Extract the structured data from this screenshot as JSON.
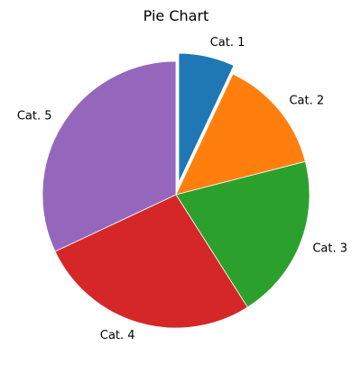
{
  "chart_data": {
    "type": "pie",
    "title": "Pie Chart",
    "categories": [
      "Cat. 1",
      "Cat. 2",
      "Cat. 3",
      "Cat. 4",
      "Cat. 5"
    ],
    "values": [
      7,
      14,
      20,
      27,
      32
    ],
    "colors": [
      "#1f77b4",
      "#ff7f0e",
      "#2ca02c",
      "#d62728",
      "#9467bd"
    ],
    "exploded": [
      "Cat. 1"
    ],
    "start_angle": "top (12 o'clock)",
    "direction": "clockwise"
  }
}
